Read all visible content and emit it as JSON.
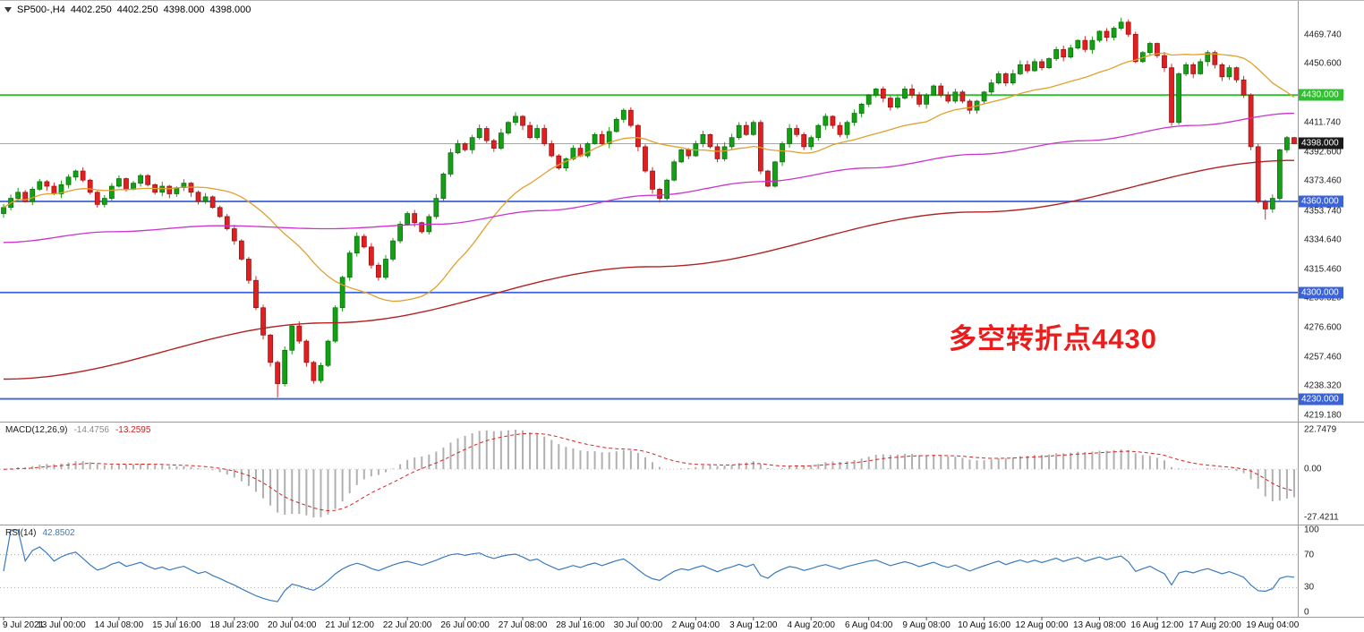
{
  "header": {
    "symbol_period": "SP500-,H4",
    "open": "4402.250",
    "high": "4402.250",
    "low": "4398.000",
    "close": "4398.000"
  },
  "annotation": {
    "text": "多空转折点4430",
    "color": "#ea1c1c"
  },
  "indicators": {
    "macd": {
      "label": "MACD(12,26,9)",
      "main_value": "-14.4756",
      "signal_value": "-13.2595",
      "axis_top": "22.7479",
      "axis_zero": "0.00",
      "axis_bottom": "-27.4211"
    },
    "rsi": {
      "label": "RSI(14)",
      "value": "42.8502",
      "axis_labels": [
        "100",
        "70",
        "30",
        "0"
      ],
      "axis_values": [
        100,
        70,
        30,
        0
      ],
      "level_lines": [
        70,
        30
      ]
    }
  },
  "colors": {
    "up_fill": "#14a014",
    "up_border": "#0b660b",
    "down_fill": "#e02020",
    "down_border": "#8f1010",
    "ma_fast": "#e2a02e",
    "ma_mid": "#cc33cc",
    "ma_slow": "#b22222",
    "green_line": "#2fbf2f",
    "blue_line": "#3b62d6",
    "price_badge": "#1a1a1a",
    "macd_hist": "#b0b0b0",
    "macd_signal": "#d42424",
    "rsi_line": "#3a7abf",
    "level_dotted": "#a8a8a8",
    "separator": "#9a9a9a",
    "current_price_line": "#8a8a8a"
  },
  "chart_data": {
    "type": "candlestick",
    "symbol": "SP500-",
    "timeframe": "H4",
    "title": "SP500-,H4 4402.250 4402.250 4398.000 4398.000",
    "ylim": [
      4215,
      4492
    ],
    "closes": [
      4356,
      4362,
      4366,
      4360,
      4368,
      4373,
      4370,
      4365,
      4371,
      4376,
      4380,
      4374,
      4366,
      4358,
      4362,
      4370,
      4375,
      4368,
      4372,
      4377,
      4371,
      4366,
      4370,
      4365,
      4369,
      4372,
      4366,
      4360,
      4363,
      4356,
      4350,
      4342,
      4334,
      4322,
      4308,
      4290,
      4272,
      4254,
      4240,
      4262,
      4278,
      4268,
      4254,
      4242,
      4252,
      4268,
      4290,
      4310,
      4326,
      4337,
      4330,
      4318,
      4310,
      4322,
      4334,
      4345,
      4352,
      4346,
      4340,
      4350,
      4362,
      4378,
      4392,
      4398,
      4394,
      4402,
      4408,
      4400,
      4395,
      4405,
      4412,
      4416,
      4410,
      4402,
      4408,
      4398,
      4390,
      4382,
      4388,
      4395,
      4390,
      4398,
      4404,
      4398,
      4406,
      4414,
      4420,
      4410,
      4396,
      4380,
      4368,
      4362,
      4374,
      4386,
      4394,
      4390,
      4398,
      4404,
      4396,
      4388,
      4396,
      4402,
      4410,
      4404,
      4412,
      4380,
      4370,
      4386,
      4398,
      4408,
      4404,
      4396,
      4402,
      4410,
      4416,
      4410,
      4404,
      4412,
      4418,
      4424,
      4430,
      4434,
      4428,
      4422,
      4428,
      4434,
      4430,
      4424,
      4430,
      4436,
      4430,
      4426,
      4432,
      4426,
      4420,
      4426,
      4432,
      4438,
      4444,
      4438,
      4444,
      4450,
      4446,
      4452,
      4448,
      4454,
      4460,
      4455,
      4461,
      4466,
      4460,
      4466,
      4472,
      4468,
      4474,
      4478,
      4470,
      4452,
      4458,
      4464,
      4456,
      4448,
      4412,
      4444,
      4450,
      4444,
      4452,
      4458,
      4450,
      4442,
      4448,
      4440,
      4430,
      4396,
      4360,
      4355,
      4362,
      4394,
      4402,
      4398
    ],
    "wick_low": {
      "38": 4231,
      "43": 4240,
      "175": 4348,
      "179": 4397.8
    },
    "wick_high": {
      "155": 4481,
      "179": 4402.4
    },
    "hlines": [
      {
        "value": 4430,
        "label": "4430.000",
        "color_key": "green_line"
      },
      {
        "value": 4360,
        "label": "4360.000",
        "color_key": "blue_line"
      },
      {
        "value": 4300,
        "label": "4300.000",
        "color_key": "blue_line"
      },
      {
        "value": 4230,
        "label": "4230.000",
        "color_key": "blue_line"
      }
    ],
    "current_price": {
      "value": 4398,
      "label": "4398.000"
    },
    "y_ticks": [
      {
        "v": 4469.74,
        "t": "4469.740"
      },
      {
        "v": 4450.6,
        "t": "4450.600"
      },
      {
        "v": 4411.74,
        "t": "4411.740"
      },
      {
        "v": 4392.6,
        "t": "4392.600"
      },
      {
        "v": 4373.46,
        "t": "4373.460"
      },
      {
        "v": 4353.74,
        "t": "4353.740"
      },
      {
        "v": 4334.64,
        "t": "4334.640"
      },
      {
        "v": 4315.46,
        "t": "4315.460"
      },
      {
        "v": 4296.32,
        "t": "4296.320"
      },
      {
        "v": 4276.6,
        "t": "4276.600"
      },
      {
        "v": 4257.46,
        "t": "4257.460"
      },
      {
        "v": 4238.32,
        "t": "4238.320"
      },
      {
        "v": 4219.18,
        "t": "4219.180"
      }
    ],
    "x_labels": [
      {
        "i": 0,
        "t": "9 Jul 2021"
      },
      {
        "i": 8,
        "t": "13 Jul 00:00"
      },
      {
        "i": 16,
        "t": "14 Jul 08:00"
      },
      {
        "i": 24,
        "t": "15 Jul 16:00"
      },
      {
        "i": 32,
        "t": "18 Jul 23:00"
      },
      {
        "i": 40,
        "t": "20 Jul 04:00"
      },
      {
        "i": 48,
        "t": "21 Jul 12:00"
      },
      {
        "i": 56,
        "t": "22 Jul 20:00"
      },
      {
        "i": 64,
        "t": "26 Jul 00:00"
      },
      {
        "i": 72,
        "t": "27 Jul 08:00"
      },
      {
        "i": 80,
        "t": "28 Jul 16:00"
      },
      {
        "i": 88,
        "t": "30 Jul 00:00"
      },
      {
        "i": 96,
        "t": "2 Aug 04:00"
      },
      {
        "i": 104,
        "t": "3 Aug 12:00"
      },
      {
        "i": 112,
        "t": "4 Aug 20:00"
      },
      {
        "i": 120,
        "t": "6 Aug 04:00"
      },
      {
        "i": 128,
        "t": "9 Aug 08:00"
      },
      {
        "i": 136,
        "t": "10 Aug 16:00"
      },
      {
        "i": 144,
        "t": "12 Aug 00:00"
      },
      {
        "i": 152,
        "t": "13 Aug 08:00"
      },
      {
        "i": 160,
        "t": "16 Aug 12:00"
      },
      {
        "i": 168,
        "t": "17 Aug 20:00"
      },
      {
        "i": 176,
        "t": "19 Aug 04:00"
      }
    ],
    "moving_averages": {
      "fast": {
        "type": "sma",
        "period": 24,
        "color_key": "ma_fast"
      },
      "mid": {
        "type": "keypoints",
        "color_key": "ma_mid",
        "points": [
          [
            0,
            4333
          ],
          [
            15,
            4340
          ],
          [
            30,
            4344
          ],
          [
            45,
            4342
          ],
          [
            60,
            4345
          ],
          [
            75,
            4354
          ],
          [
            90,
            4364
          ],
          [
            105,
            4373
          ],
          [
            120,
            4382
          ],
          [
            135,
            4391
          ],
          [
            150,
            4400
          ],
          [
            165,
            4410
          ],
          [
            179,
            4418
          ]
        ]
      },
      "slow": {
        "type": "keypoints",
        "color_key": "ma_slow",
        "points": [
          [
            0,
            4243
          ],
          [
            45,
            4280
          ],
          [
            90,
            4317
          ],
          [
            135,
            4353
          ],
          [
            179,
            4387
          ]
        ]
      }
    },
    "macd_params": {
      "fast": 12,
      "slow": 26,
      "signal": 9
    },
    "rsi_params": {
      "period": 14
    }
  }
}
